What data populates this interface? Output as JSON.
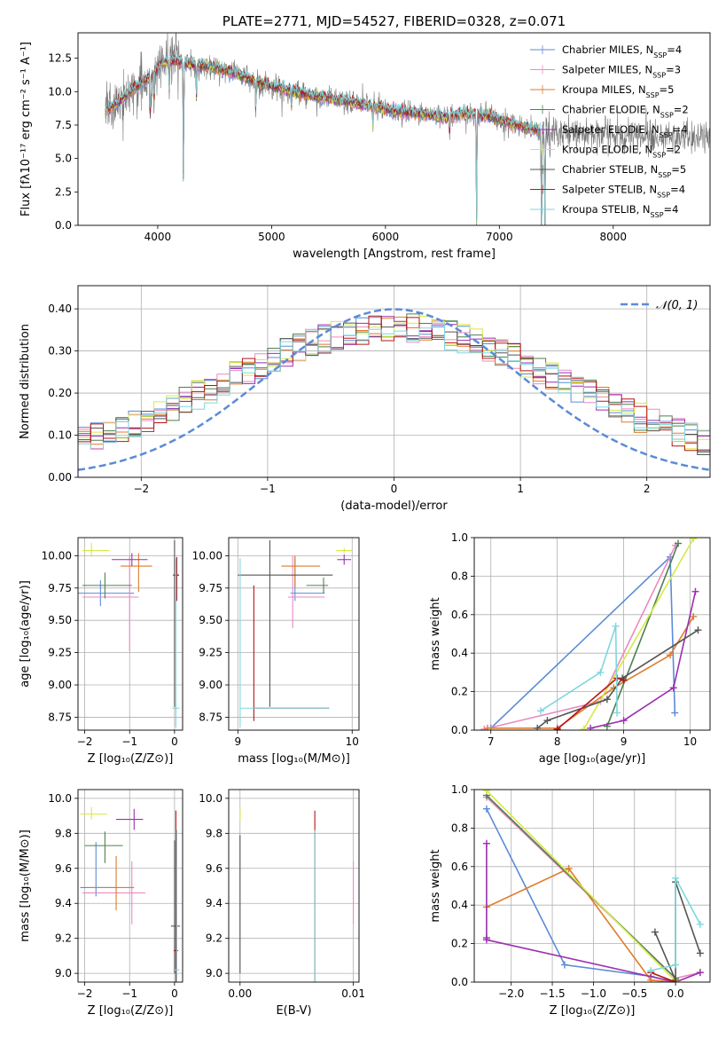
{
  "colors": {
    "Chabrier MILES": "#5b8bd6",
    "Salpeter MILES": "#e98ac4",
    "Kroupa MILES": "#e07b28",
    "Chabrier ELODIE": "#4f7f4f",
    "Salpeter ELODIE": "#9b2fae",
    "Kroupa ELODIE": "#d7e845",
    "Chabrier STELIB": "#555555",
    "Salpeter STELIB": "#b41616",
    "Kroupa STELIB": "#7fd6de",
    "data": "#777777",
    "normal": "#5b8bd6",
    "grid": "#b0b0b0"
  },
  "chart_data": [
    {
      "id": "spectrum",
      "type": "line",
      "title": "PLATE=2771, MJD=54527, FIBERID=0328, z=0.071",
      "xlabel": "wavelength [Angstrom, rest frame]",
      "ylabel": "Flux [fλ10⁻¹⁷ erg cm⁻² s⁻¹ A⁻¹]",
      "xlim": [
        3300,
        8850
      ],
      "ylim": [
        0,
        14.4
      ],
      "xticks": [
        4000,
        5000,
        6000,
        7000,
        8000
      ],
      "yticks": [
        0.0,
        2.5,
        5.0,
        7.5,
        10.0,
        12.5
      ],
      "grid": false,
      "legend_position": "top-right",
      "legend": [
        {
          "label": "Chabrier MILES, N",
          "sub": "SSP",
          "suffix": "=4",
          "key": "Chabrier MILES"
        },
        {
          "label": "Salpeter MILES, N",
          "sub": "SSP",
          "suffix": "=3",
          "key": "Salpeter MILES"
        },
        {
          "label": "Kroupa MILES, N",
          "sub": "SSP",
          "suffix": "=5",
          "key": "Kroupa MILES"
        },
        {
          "label": "Chabrier ELODIE, N",
          "sub": "SSP",
          "suffix": "=2",
          "key": "Chabrier ELODIE"
        },
        {
          "label": "Salpeter ELODIE, N",
          "sub": "SSP",
          "suffix": "=4",
          "key": "Salpeter ELODIE"
        },
        {
          "label": "Kroupa ELODIE, N",
          "sub": "SSP",
          "suffix": "=2",
          "key": "Kroupa ELODIE"
        },
        {
          "label": "Chabrier STELIB, N",
          "sub": "SSP",
          "suffix": "=5",
          "key": "Chabrier STELIB"
        },
        {
          "label": "Salpeter STELIB, N",
          "sub": "SSP",
          "suffix": "=4",
          "key": "Salpeter STELIB"
        },
        {
          "label": "Kroupa STELIB, N",
          "sub": "SSP",
          "suffix": "=4",
          "key": "Kroupa STELIB"
        }
      ],
      "continuum": {
        "x": [
          3550,
          3700,
          3850,
          3950,
          4050,
          4150,
          4300,
          4500,
          4700,
          4900,
          5100,
          5300,
          5500,
          5700,
          5900,
          6100,
          6300,
          6500,
          6700,
          6900,
          7100,
          7300,
          7500
        ],
        "y": [
          8.5,
          9.6,
          10.6,
          11.2,
          12.2,
          12.3,
          12.0,
          11.8,
          11.3,
          10.6,
          10.2,
          9.8,
          9.5,
          9.2,
          8.9,
          8.5,
          8.4,
          8.1,
          8.4,
          8.2,
          7.6,
          7.2,
          6.7
        ]
      },
      "data_range": [
        3540,
        8850
      ],
      "stelib_range": [
        3540,
        7420
      ],
      "model_range": [
        3540,
        7420
      ]
    },
    {
      "id": "residuals",
      "type": "histogram",
      "xlabel": "(data-model)/error",
      "ylabel": "Normed distribution",
      "xlim": [
        -2.5,
        2.5
      ],
      "ylim": [
        0,
        0.455
      ],
      "xticks": [
        -2,
        -1,
        0,
        1,
        2
      ],
      "yticks": [
        0.0,
        0.1,
        0.2,
        0.3,
        0.4
      ],
      "grid": true,
      "legend_position": "top-right",
      "legend": [
        {
          "label": "𝒩(0, 1)",
          "style": "dashed"
        }
      ],
      "bins": 50,
      "normal": {
        "mean": 0,
        "sigma": 1
      }
    },
    {
      "id": "age-vs-Z",
      "type": "errorbar",
      "xlabel": "Z [log₁₀(Z/Z⊙)]",
      "ylabel": "age  [log₁₀(age/yr)]",
      "xlim": [
        -2.15,
        0.18
      ],
      "ylim": [
        8.65,
        10.14
      ],
      "xticks": [
        -2,
        -1,
        0
      ],
      "yticks": [
        8.75,
        9.0,
        9.25,
        9.5,
        9.75,
        10.0
      ],
      "grid": true,
      "points": [
        {
          "key": "Chabrier MILES",
          "x": -1.65,
          "xerr": [
            0.55,
            0.75
          ],
          "y": 9.71,
          "yerr": [
            0.1,
            0.1
          ]
        },
        {
          "key": "Salpeter MILES",
          "x": -1.0,
          "xerr": [
            1.05,
            0.2
          ],
          "y": 9.68,
          "yerr": [
            0.42,
            0.32
          ]
        },
        {
          "key": "Kroupa MILES",
          "x": -0.8,
          "xerr": [
            0.4,
            0.3
          ],
          "y": 9.92,
          "yerr": [
            0.2,
            0.1
          ]
        },
        {
          "key": "Chabrier ELODIE",
          "x": -1.55,
          "xerr": [
            0.5,
            0.6
          ],
          "y": 9.77,
          "yerr": [
            0.1,
            0.1
          ]
        },
        {
          "key": "Salpeter ELODIE",
          "x": -0.95,
          "xerr": [
            0.45,
            0.35
          ],
          "y": 9.97,
          "yerr": [
            0.05,
            0.05
          ]
        },
        {
          "key": "Kroupa ELODIE",
          "x": -1.85,
          "xerr": [
            0.2,
            0.4
          ],
          "y": 10.04,
          "yerr": [
            0.05,
            0.06
          ]
        },
        {
          "key": "Chabrier STELIB",
          "x": 0.0,
          "xerr": [
            0.04,
            0.1
          ],
          "y": 9.85,
          "yerr": [
            1.02,
            0.27
          ]
        },
        {
          "key": "Salpeter STELIB",
          "x": 0.05,
          "xerr": [
            0.05,
            0.05
          ],
          "y": 9.85,
          "yerr": [
            0.2,
            0.14
          ]
        },
        {
          "key": "Kroupa STELIB",
          "x": 0.03,
          "xerr": [
            0.08,
            0.08
          ],
          "y": 8.82,
          "yerr": [
            0.15,
            1.16
          ]
        }
      ]
    },
    {
      "id": "age-vs-mass",
      "type": "errorbar",
      "xlabel": "mass [log₁₀(M/M⊙)]",
      "ylabel": "",
      "xlim": [
        8.92,
        10.06
      ],
      "ylim": [
        8.65,
        10.14
      ],
      "xticks": [
        9,
        10
      ],
      "yticks": [
        8.75,
        9.0,
        9.25,
        9.5,
        9.75,
        10.0
      ],
      "grid": true,
      "points": [
        {
          "key": "Chabrier MILES",
          "x": 9.5,
          "xerr": [
            0.04,
            0.26
          ],
          "y": 9.71,
          "yerr": [
            0.06,
            0.28
          ]
        },
        {
          "key": "Salpeter MILES",
          "x": 9.48,
          "xerr": [
            0.04,
            0.28
          ],
          "y": 9.68,
          "yerr": [
            0.24,
            0.32
          ]
        },
        {
          "key": "Kroupa MILES",
          "x": 9.5,
          "xerr": [
            0.12,
            0.22
          ],
          "y": 9.92,
          "yerr": [
            0.16,
            0.08
          ]
        },
        {
          "key": "Chabrier ELODIE",
          "x": 9.75,
          "xerr": [
            0.15,
            0.04
          ],
          "y": 9.77,
          "yerr": [
            0.06,
            0.06
          ]
        },
        {
          "key": "Salpeter ELODIE",
          "x": 9.93,
          "xerr": [
            0.06,
            0.06
          ],
          "y": 9.97,
          "yerr": [
            0.04,
            0.04
          ]
        },
        {
          "key": "Kroupa ELODIE",
          "x": 9.93,
          "xerr": [
            0.07,
            0.07
          ],
          "y": 10.04,
          "yerr": [
            0.02,
            0.02
          ]
        },
        {
          "key": "Chabrier STELIB",
          "x": 9.28,
          "xerr": [
            0.28,
            0.55
          ],
          "y": 9.85,
          "yerr": [
            1.02,
            0.27
          ]
        },
        {
          "key": "Salpeter STELIB",
          "x": 9.14,
          "xerr": [
            0.0,
            0.66
          ],
          "y": 8.82,
          "yerr": [
            0.1,
            0.95
          ]
        },
        {
          "key": "Kroupa STELIB",
          "x": 9.02,
          "xerr": [
            0.0,
            0.78
          ],
          "y": 8.82,
          "yerr": [
            0.15,
            1.16
          ]
        }
      ]
    },
    {
      "id": "mass-weight-vs-age",
      "type": "line",
      "xlabel": "age  [log₁₀(age/yr)]",
      "ylabel": "mass weight",
      "xlim": [
        6.75,
        10.3
      ],
      "ylim": [
        0,
        1.0
      ],
      "xticks": [
        7,
        8,
        9,
        10
      ],
      "yticks": [
        0.0,
        0.2,
        0.4,
        0.6,
        0.8,
        1.0
      ],
      "grid": true,
      "series": [
        {
          "key": "Chabrier MILES",
          "x": [
            7.0,
            9.7,
            9.77
          ],
          "y": [
            0.01,
            0.9,
            0.09
          ]
        },
        {
          "key": "Salpeter MILES",
          "x": [
            6.9,
            8.65,
            9.78
          ],
          "y": [
            0.005,
            0.15,
            0.96
          ]
        },
        {
          "key": "Kroupa MILES",
          "x": [
            6.95,
            8.0,
            8.85,
            9.7,
            10.05
          ],
          "y": [
            0.01,
            0.01,
            0.22,
            0.39,
            0.59
          ]
        },
        {
          "key": "Chabrier ELODIE",
          "x": [
            8.75,
            9.82
          ],
          "y": [
            0.02,
            0.97
          ]
        },
        {
          "key": "Salpeter ELODIE",
          "x": [
            8.5,
            9.0,
            9.75,
            10.08
          ],
          "y": [
            0.01,
            0.05,
            0.22,
            0.72
          ]
        },
        {
          "key": "Kroupa ELODIE",
          "x": [
            8.4,
            10.05
          ],
          "y": [
            0.005,
            0.995
          ]
        },
        {
          "key": "Chabrier STELIB",
          "x": [
            7.7,
            7.85,
            8.75,
            8.98,
            10.12
          ],
          "y": [
            0.01,
            0.05,
            0.16,
            0.27,
            0.52
          ]
        },
        {
          "key": "Salpeter STELIB",
          "x": [
            8.0,
            8.9,
            9.0
          ],
          "y": [
            0.005,
            0.27,
            0.26
          ]
        },
        {
          "key": "Kroupa STELIB",
          "x": [
            7.75,
            8.65,
            8.88,
            8.9
          ],
          "y": [
            0.1,
            0.3,
            0.54,
            0.09
          ]
        }
      ]
    },
    {
      "id": "mass-vs-Z",
      "type": "errorbar",
      "xlabel": "Z [log₁₀(Z/Z⊙)]",
      "ylabel": "mass [log₁₀(M/M⊙)]",
      "xlim": [
        -2.15,
        0.18
      ],
      "ylim": [
        8.95,
        10.05
      ],
      "xticks": [
        -2,
        -1,
        0
      ],
      "yticks": [
        9.0,
        9.2,
        9.4,
        9.6,
        9.8,
        10.0
      ],
      "grid": true,
      "points": [
        {
          "key": "Chabrier MILES",
          "x": -1.75,
          "xerr": [
            0.35,
            0.45
          ],
          "y": 9.49,
          "yerr": [
            0.05,
            0.26
          ]
        },
        {
          "key": "Salpeter MILES",
          "x": -0.95,
          "xerr": [
            1.1,
            0.3
          ],
          "y": 9.46,
          "yerr": [
            0.18,
            0.18
          ]
        },
        {
          "key": "Kroupa MILES",
          "x": -1.3,
          "xerr": [
            0.6,
            0.4
          ],
          "y": 9.49,
          "yerr": [
            0.13,
            0.18
          ]
        },
        {
          "key": "Chabrier ELODIE",
          "x": -1.55,
          "xerr": [
            0.45,
            0.4
          ],
          "y": 9.73,
          "yerr": [
            0.1,
            0.08
          ]
        },
        {
          "key": "Salpeter ELODIE",
          "x": -0.9,
          "xerr": [
            0.4,
            0.2
          ],
          "y": 9.88,
          "yerr": [
            0.06,
            0.06
          ]
        },
        {
          "key": "Kroupa ELODIE",
          "x": -1.85,
          "xerr": [
            0.25,
            0.35
          ],
          "y": 9.91,
          "yerr": [
            0.03,
            0.04
          ]
        },
        {
          "key": "Chabrier STELIB",
          "x": 0.0,
          "xerr": [
            0.08,
            0.12
          ],
          "y": 9.27,
          "yerr": [
            0.27,
            0.49
          ]
        },
        {
          "key": "Salpeter STELIB",
          "x": 0.03,
          "xerr": [
            0.05,
            0.05
          ],
          "y": 9.13,
          "yerr": [
            0.18,
            0.8
          ]
        },
        {
          "key": "Kroupa STELIB",
          "x": 0.05,
          "xerr": [
            0.08,
            0.06
          ],
          "y": 9.02,
          "yerr": [
            0.07,
            0.8
          ]
        }
      ]
    },
    {
      "id": "mass-vs-EBV",
      "type": "errorbar",
      "xlabel": "E(B-V)",
      "ylabel": "",
      "xlim": [
        -0.001,
        0.0105
      ],
      "ylim": [
        8.95,
        10.05
      ],
      "xticks": [
        0.0,
        0.01
      ],
      "yticks": [
        9.0,
        9.2,
        9.4,
        9.6,
        9.8,
        10.0
      ],
      "grid": true,
      "points": [
        {
          "key": "Kroupa ELODIE",
          "x": 0.0,
          "xerr": [
            0,
            0
          ],
          "y": 9.91,
          "yerr": [
            0.04,
            0.04
          ]
        },
        {
          "key": "Chabrier STELIB",
          "x": 0.0,
          "xerr": [
            0,
            0
          ],
          "y": 9.27,
          "yerr": [
            0.27,
            0.52
          ]
        },
        {
          "key": "Salpeter STELIB",
          "x": 0.0066,
          "xerr": [
            0,
            0
          ],
          "y": 9.13,
          "yerr": [
            0.18,
            0.8
          ]
        },
        {
          "key": "Kroupa STELIB",
          "x": 0.0066,
          "xerr": [
            0,
            0
          ],
          "y": 9.02,
          "yerr": [
            0.07,
            0.8
          ]
        },
        {
          "key": "Salpeter MILES",
          "x": 0.01,
          "xerr": [
            0,
            0
          ],
          "y": 9.46,
          "yerr": [
            0.18,
            0.18
          ]
        }
      ]
    },
    {
      "id": "mass-weight-vs-Z",
      "type": "line",
      "xlabel": "Z [log₁₀(Z/Z⊙)]",
      "ylabel": "mass weight",
      "xlim": [
        -2.45,
        0.42
      ],
      "ylim": [
        0,
        1.0
      ],
      "xticks": [
        -2.0,
        -1.5,
        -1.0,
        -0.5,
        0.0
      ],
      "yticks": [
        0.0,
        0.2,
        0.4,
        0.6,
        0.8,
        1.0
      ],
      "grid": true,
      "series": [
        {
          "key": "Chabrier MILES",
          "x": [
            -2.3,
            -1.35,
            -0.3,
            0.0
          ],
          "y": [
            0.9,
            0.09,
            0.03,
            0.0
          ]
        },
        {
          "key": "Salpeter MILES",
          "x": [
            -2.3,
            0.0,
            0.3
          ],
          "y": [
            0.96,
            0.02,
            0.05
          ]
        },
        {
          "key": "Kroupa MILES",
          "x": [
            -2.3,
            -1.3,
            -0.3,
            0.0
          ],
          "y": [
            0.39,
            0.59,
            0.01,
            0.0
          ]
        },
        {
          "key": "Chabrier ELODIE",
          "x": [
            -2.3,
            0.0
          ],
          "y": [
            0.97,
            0.02
          ]
        },
        {
          "key": "Salpeter ELODIE",
          "x": [
            -2.3,
            -2.3,
            -2.3,
            0.0,
            0.3
          ],
          "y": [
            0.72,
            0.23,
            0.22,
            0.0,
            0.05
          ]
        },
        {
          "key": "Kroupa ELODIE",
          "x": [
            -2.3,
            0.0
          ],
          "y": [
            0.995,
            0.005
          ]
        },
        {
          "key": "Chabrier STELIB",
          "x": [
            -0.25,
            0.0,
            0.0,
            0.3
          ],
          "y": [
            0.26,
            0.01,
            0.52,
            0.15
          ]
        },
        {
          "key": "Salpeter STELIB",
          "x": [
            -0.3,
            0.0
          ],
          "y": [
            0.05,
            0.0
          ]
        },
        {
          "key": "Kroupa STELIB",
          "x": [
            -0.3,
            0.0,
            0.0,
            0.3
          ],
          "y": [
            0.06,
            0.09,
            0.54,
            0.3
          ]
        }
      ]
    }
  ]
}
